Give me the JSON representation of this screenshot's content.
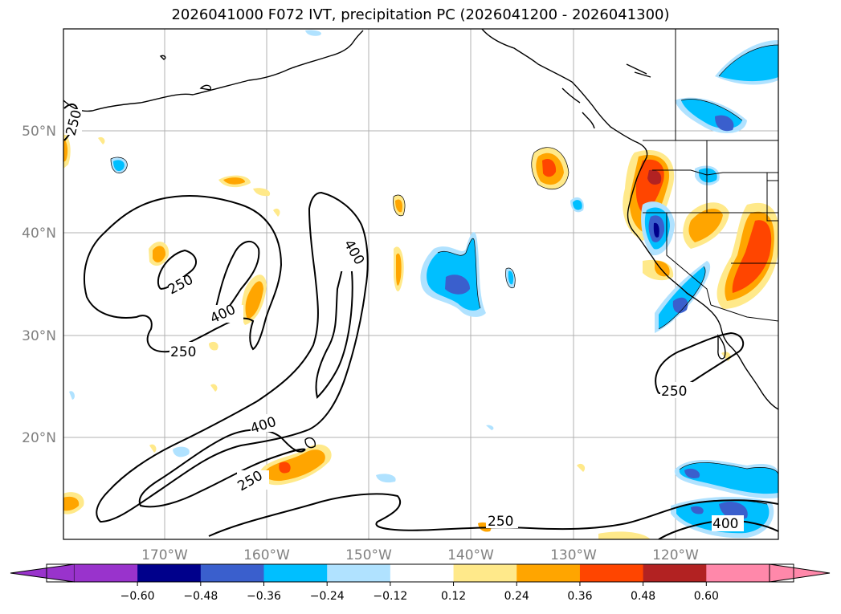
{
  "title": "2026041000 F072 IVT, precipitation PC (2026041200 - 2026041300)",
  "lat_labels": [
    "50°N",
    "40°N",
    "30°N",
    "20°N"
  ],
  "lon_labels": [
    "170°W",
    "160°W",
    "150°W",
    "140°W",
    "130°W",
    "120°W"
  ],
  "contour_labels": [
    "250",
    "250",
    "250",
    "400",
    "400",
    "400",
    "250",
    "250",
    "250",
    "400"
  ],
  "colorbar": {
    "tick_labels": [
      "−0.60",
      "−0.48",
      "−0.36",
      "−0.24",
      "−0.12",
      "0.12",
      "0.24",
      "0.36",
      "0.48",
      "0.60"
    ],
    "colors": [
      "#9933cc",
      "#00008b",
      "#3a5fcd",
      "#00bfff",
      "#b0e2ff",
      "#ffffff",
      "#ffe98a",
      "#ffa500",
      "#ff4500",
      "#b22222",
      "#ff88aa",
      "#ff88aa"
    ]
  }
}
